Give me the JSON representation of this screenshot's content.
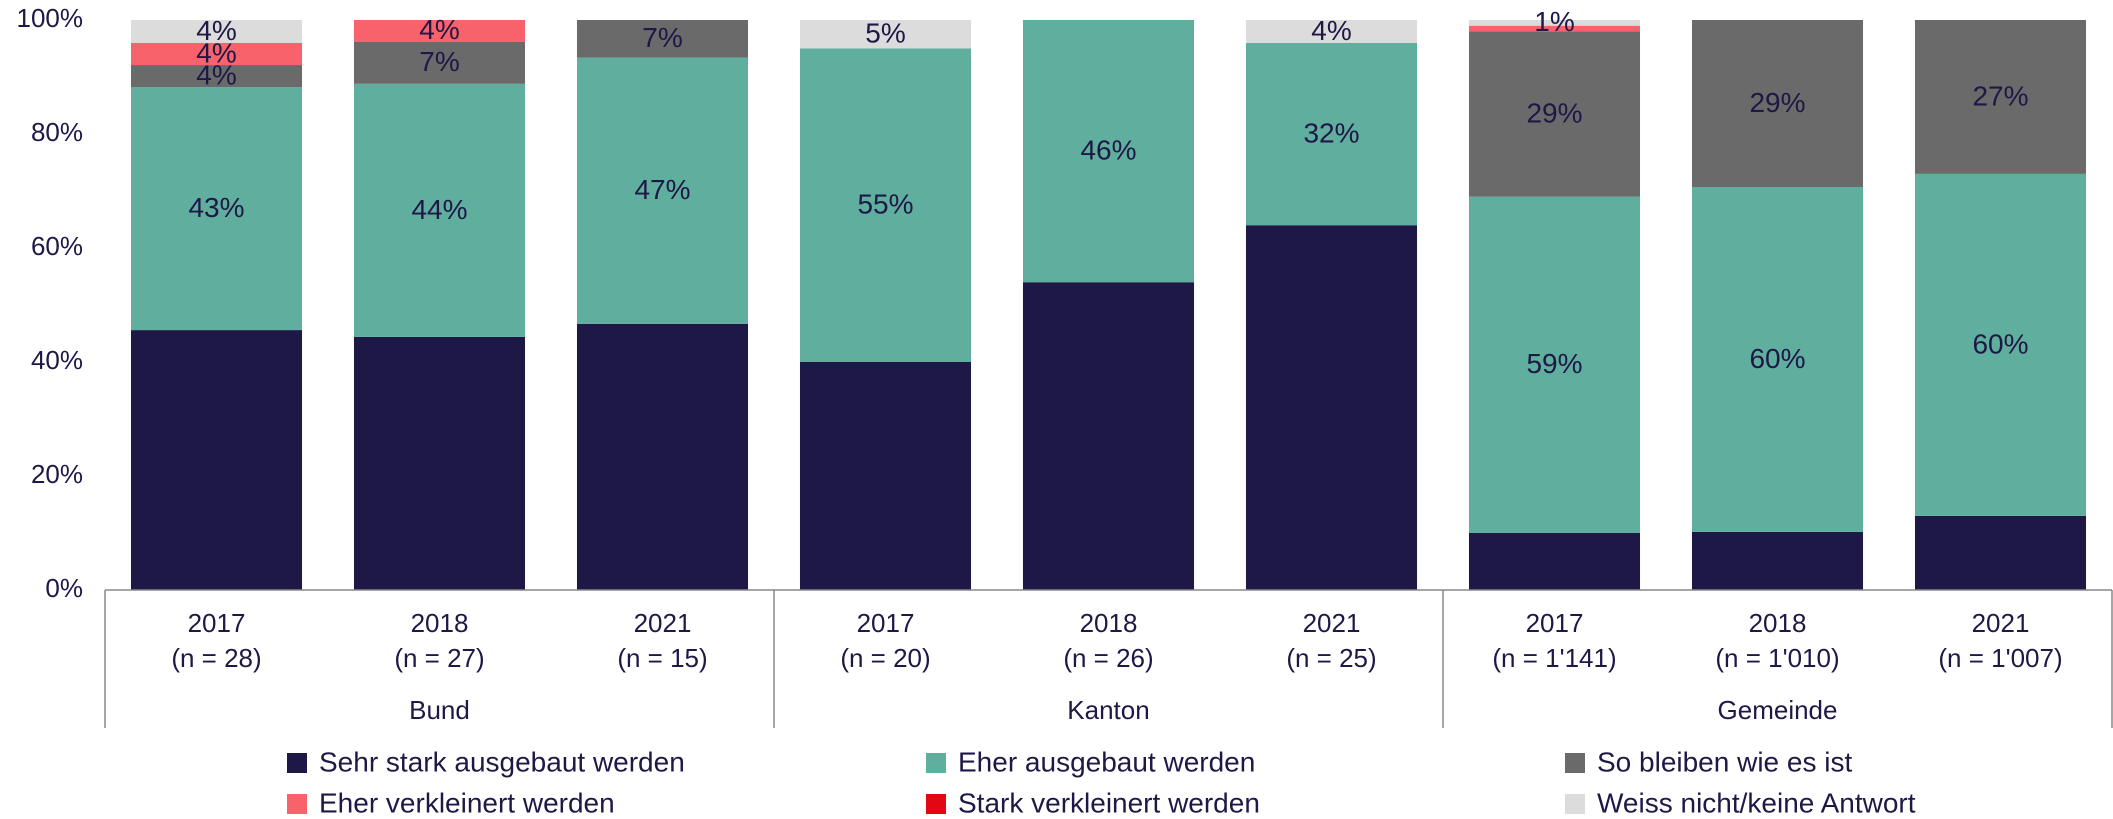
{
  "chart_data": {
    "type": "stacked_bar",
    "categories": [
      "2017",
      "2018",
      "2021",
      "2017",
      "2018",
      "2021",
      "2017",
      "2018",
      "2021"
    ],
    "category_notes": [
      "(n = 28)",
      "(n = 27)",
      "(n = 15)",
      "(n = 20)",
      "(n = 26)",
      "(n = 25)",
      "(n = 1'141)",
      "(n = 1'010)",
      "(n = 1'007)"
    ],
    "groups": [
      "Bund",
      "Kanton",
      "Gemeinde"
    ],
    "ylim": [
      0,
      100
    ],
    "yticks": [
      {
        "value": 0,
        "label": "0%"
      },
      {
        "value": 20,
        "label": "20%"
      },
      {
        "value": 40,
        "label": "40%"
      },
      {
        "value": 60,
        "label": "60%"
      },
      {
        "value": 80,
        "label": "80%"
      },
      {
        "value": 100,
        "label": "100%"
      }
    ],
    "series": [
      {
        "name": "Sehr stark ausgebaut werden",
        "color": "#1e1846",
        "label_color": "#ffffff",
        "values": [
          45.6,
          44.4,
          46.7,
          40,
          54,
          64,
          10,
          10.2,
          13
        ],
        "value_labels": [
          "46%",
          "44%",
          "47%",
          "40%",
          "54%",
          "64%",
          "10%",
          "10%",
          "13%"
        ]
      },
      {
        "name": "Eher ausgebaut werden",
        "color": "#60ae9e",
        "label_color": "#ffffff",
        "values": [
          42.6,
          44.4,
          46.7,
          55,
          46,
          32,
          59,
          60.5,
          60
        ],
        "value_labels": [
          "43%",
          "44%",
          "47%",
          "55%",
          "46%",
          "32%",
          "59%",
          "60%",
          "60%"
        ]
      },
      {
        "name": "So bleiben wie es ist",
        "color": "#6a6a6a",
        "label_color": "#ffffff",
        "values": [
          3.9,
          7.4,
          6.6,
          0,
          0,
          0,
          29,
          29.3,
          27
        ],
        "value_labels": [
          "4%",
          "7%",
          "7%",
          null,
          null,
          null,
          "29%",
          "29%",
          "27%"
        ]
      },
      {
        "name": "Eher verkleinert werden",
        "color": "#f7626b",
        "label_color": "#ffffff",
        "values": [
          3.9,
          3.8,
          0,
          0,
          0,
          0,
          1,
          0,
          0
        ],
        "value_labels": [
          "4%",
          "4%",
          null,
          null,
          null,
          null,
          null,
          null,
          null
        ]
      },
      {
        "name": "Stark verkleinert werden",
        "color": "#e30613",
        "label_color": "#ffffff",
        "values": [
          0,
          0,
          0,
          0,
          0,
          0,
          0,
          0,
          0
        ],
        "value_labels": [
          null,
          null,
          null,
          null,
          null,
          null,
          null,
          null,
          null
        ]
      },
      {
        "name": "Weiss nicht/keine Antwort",
        "color": "#dcdcdc",
        "label_color": "#1e1846",
        "values": [
          4,
          0,
          0,
          5,
          0,
          4,
          1,
          0,
          0
        ],
        "value_labels": [
          "4%",
          null,
          null,
          "5%",
          null,
          "4%",
          "1%",
          null,
          null
        ]
      }
    ]
  }
}
